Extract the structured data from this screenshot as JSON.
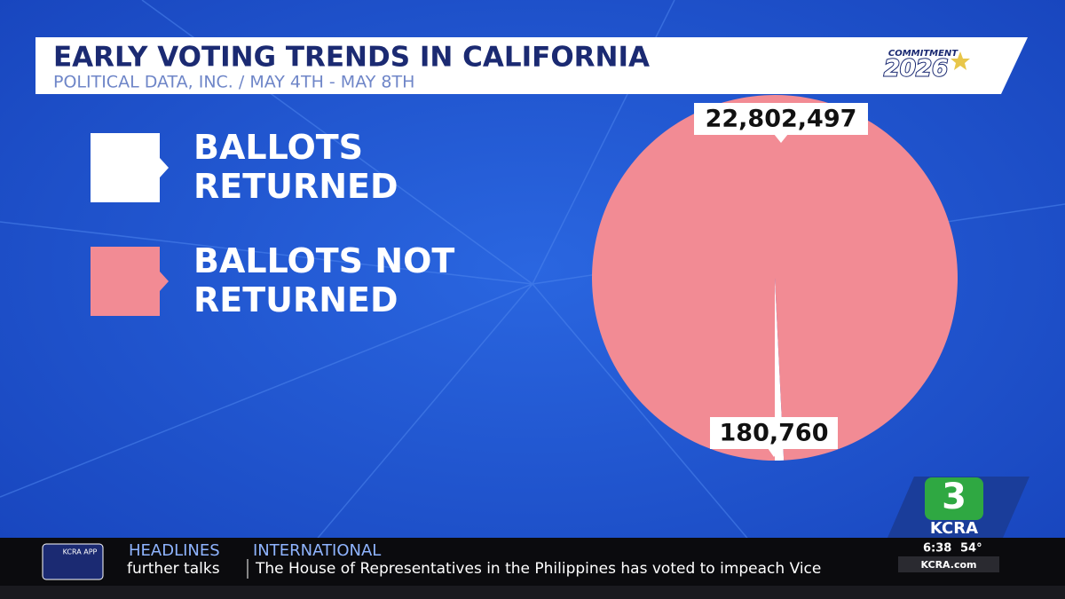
{
  "chart_data": {
    "type": "pie",
    "title": "EARLY VOTING TRENDS IN CALIFORNIA",
    "subtitle": "POLITICAL DATA, INC. / MAY 4TH - MAY 8TH",
    "categories": [
      "BALLOTS RETURNED",
      "BALLOTS NOT RETURNED"
    ],
    "values": [
      180760,
      22802497
    ],
    "value_labels": [
      "180,760",
      "22,802,497"
    ],
    "colors": [
      "#ffffff",
      "#f28b94"
    ],
    "legend": "left"
  },
  "branding": {
    "campaign_top": "COMMITMENT",
    "campaign_year": "2026",
    "channel_number": "3",
    "channel_name": "KCRA",
    "app_label": "KCRA APP",
    "website": "KCRA.com"
  },
  "ticker": {
    "section": "HEADLINES",
    "topic": "INTERNATIONAL",
    "previous": "further talks",
    "headline": "The House of Representatives in the Philippines has voted to impeach Vice",
    "time": "6:38",
    "temperature": "54°"
  }
}
